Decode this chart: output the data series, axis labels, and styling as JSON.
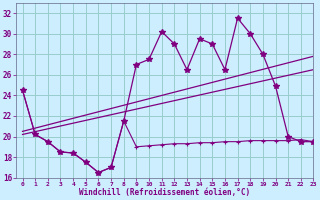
{
  "xlabel": "Windchill (Refroidissement éolien,°C)",
  "background_color": "#cceeff",
  "grid_color": "#99cccc",
  "line_color": "#800080",
  "x_hours": [
    0,
    1,
    2,
    3,
    4,
    5,
    6,
    7,
    8,
    9,
    10,
    11,
    12,
    13,
    14,
    15,
    16,
    17,
    18,
    19,
    20,
    21,
    22,
    23
  ],
  "windchill_line": [
    24.5,
    20.2,
    19.5,
    18.5,
    18.4,
    17.5,
    16.5,
    17.0,
    21.5,
    27.0,
    27.5,
    30.2,
    29.0,
    26.5,
    29.5,
    29.0,
    26.5,
    31.5,
    30.0,
    28.0,
    24.9,
    20.0,
    19.5,
    19.5
  ],
  "temp_line": [
    24.5,
    20.2,
    19.5,
    18.5,
    18.4,
    17.5,
    16.5,
    17.0,
    21.5,
    19.0,
    19.1,
    19.2,
    19.3,
    19.3,
    19.4,
    19.4,
    19.5,
    19.5,
    19.6,
    19.6,
    19.6,
    19.6,
    19.7,
    19.5
  ],
  "trend1_x": [
    0,
    23
  ],
  "trend1_y": [
    20.2,
    26.5
  ],
  "trend2_x": [
    0,
    23
  ],
  "trend2_y": [
    20.5,
    27.8
  ],
  "ylim": [
    16,
    33
  ],
  "xlim": [
    -0.5,
    23
  ],
  "yticks": [
    16,
    18,
    20,
    22,
    24,
    26,
    28,
    30,
    32
  ],
  "xticks": [
    0,
    1,
    2,
    3,
    4,
    5,
    6,
    7,
    8,
    9,
    10,
    11,
    12,
    13,
    14,
    15,
    16,
    17,
    18,
    19,
    20,
    21,
    22,
    23
  ]
}
